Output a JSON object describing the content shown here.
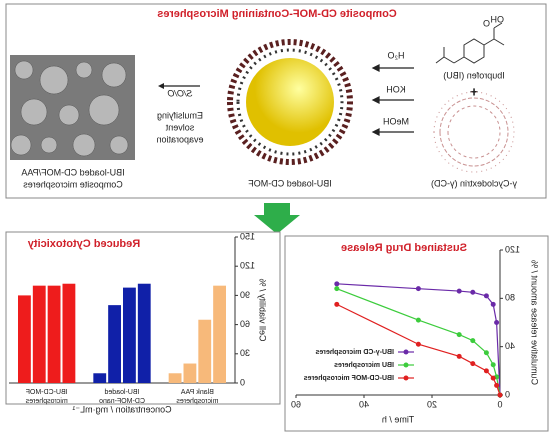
{
  "diagram": {
    "title": "Composite CD-MOF-Containing Microspheres",
    "oh": "OH",
    "o": "O",
    "ibuprofen": "Ibuprofen (IBU)",
    "plus": "+",
    "cyclodextrin": "γ-Cyclodextrin (γ-CD)",
    "reagents": [
      "H₂O",
      "KOH",
      "MeOH"
    ],
    "mof": "IBU-loaded CD-MOF",
    "process_top": "S/O/O",
    "process": [
      "Emulsifying",
      "solvent",
      "evaporation"
    ],
    "product": [
      "IBU-loaded CD-MOF/PAA",
      "Composite microspheres"
    ]
  },
  "chart_data": [
    {
      "type": "line",
      "title": "Sustained Drug Release",
      "x_label": "Time / h",
      "y_label": "Cumulative release amount / %",
      "x": [
        0,
        1,
        2,
        4,
        8,
        12,
        24,
        48
      ],
      "xlim": [
        0,
        60
      ],
      "xticks": [
        0,
        20,
        40,
        60
      ],
      "ylim": [
        0,
        120
      ],
      "yticks": [
        0,
        40,
        80,
        120
      ],
      "legend": "lower right",
      "series": [
        {
          "name": "IBU-γ-CD microspheres",
          "color": "#6a2aa8",
          "values": [
            0,
            60,
            75,
            82,
            85,
            86,
            88,
            92
          ]
        },
        {
          "name": "IBU microspheres",
          "color": "#3ccc3c",
          "values": [
            0,
            15,
            25,
            35,
            45,
            50,
            62,
            88
          ]
        },
        {
          "name": "IBU-CD-MOF microspheres",
          "color": "#e02020",
          "values": [
            0,
            8,
            14,
            20,
            26,
            32,
            42,
            75
          ]
        }
      ]
    },
    {
      "type": "grouped_bar",
      "title": "Reduced Cytotoxicity",
      "x_label": "Concentration / mg·mL⁻¹",
      "y_label": "Cell viability / %",
      "ylim": [
        0,
        150
      ],
      "yticks": [
        0,
        30,
        60,
        90,
        120,
        150
      ],
      "groups": [
        {
          "name": "Blank PAA microspheres",
          "color": "#f7b97a",
          "values": [
            100,
            65,
            20,
            10
          ]
        },
        {
          "name": "IBU-loaded CD-MOF-nano",
          "color": "#1020a8",
          "values": [
            102,
            98,
            80,
            10
          ]
        },
        {
          "name": "IBU-CD-MOF microspheres",
          "color": "#ee1c1c",
          "values": [
            102,
            100,
            100,
            90
          ]
        }
      ]
    }
  ]
}
